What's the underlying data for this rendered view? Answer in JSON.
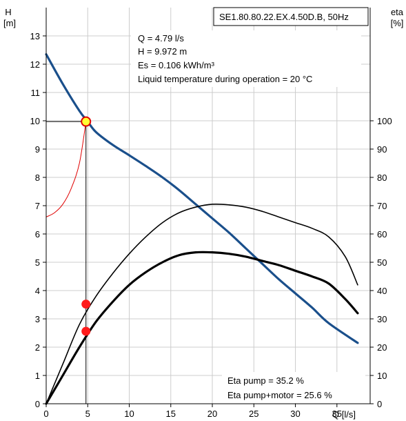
{
  "chart_data": {
    "type": "line",
    "title": "SE1.80.80.22.EX.4.50D.B, 50Hz",
    "xlabel": "Q [l/s]",
    "ylabel_left": [
      "H",
      "[m]"
    ],
    "ylabel_right": [
      "eta",
      "[%]"
    ],
    "xlim": [
      0,
      39
    ],
    "ylim_left": [
      0,
      14
    ],
    "ylim_right": [
      0,
      140
    ],
    "x_ticks": [
      0,
      5,
      10,
      15,
      20,
      25,
      30,
      35
    ],
    "y_left_ticks": [
      0,
      1,
      2,
      3,
      4,
      5,
      6,
      7,
      8,
      9,
      10,
      11,
      12,
      13
    ],
    "y_right_ticks": [
      0,
      10,
      20,
      30,
      40,
      50,
      60,
      70,
      80,
      90,
      100
    ],
    "grid": true,
    "colors": {
      "pump_curve": "#1a4f8b",
      "system_curve": "#e00000",
      "eta": "#000000",
      "duty_marker": "#ffff33",
      "eta_marker": "#ff1a1a"
    },
    "series": [
      {
        "axis": "left",
        "x": [
          0,
          2,
          4,
          5,
          6,
          8,
          10,
          12,
          14,
          16,
          18,
          20,
          22,
          24,
          26,
          28,
          30,
          32,
          34,
          37.5
        ],
        "values": [
          12.35,
          11.3,
          10.35,
          9.97,
          9.6,
          9.15,
          8.78,
          8.4,
          8.0,
          7.55,
          7.05,
          6.55,
          6.05,
          5.5,
          4.95,
          4.4,
          3.9,
          3.4,
          2.85,
          2.15
        ]
      },
      {
        "axis": "left",
        "x": [
          0,
          1,
          2,
          3,
          4,
          4.79
        ],
        "values": [
          6.6,
          6.75,
          7.05,
          7.6,
          8.5,
          9.97
        ]
      },
      {
        "axis": "right",
        "x": [
          0,
          2,
          4,
          6,
          8,
          10,
          12,
          14,
          16,
          18,
          20,
          22,
          24,
          26,
          28,
          30,
          32,
          34,
          36,
          37.5
        ],
        "values": [
          0,
          14,
          28,
          38,
          46,
          53,
          59,
          64,
          67.5,
          69.5,
          70.5,
          70.3,
          69.5,
          68,
          66,
          64,
          62,
          59,
          52,
          42
        ]
      },
      {
        "axis": "right",
        "x": [
          0,
          2,
          4,
          6,
          8,
          10,
          12,
          14,
          16,
          18,
          20,
          22,
          24,
          26,
          28,
          30,
          32,
          34,
          36,
          37.5
        ],
        "values": [
          0,
          10,
          20,
          29,
          36,
          42,
          46.5,
          50,
          52.5,
          53.5,
          53.5,
          53,
          52,
          50.5,
          49,
          47,
          45,
          42.5,
          37,
          32
        ]
      }
    ],
    "duty_point": {
      "x": 4.79,
      "y": 9.972
    },
    "eta_points": [
      {
        "x": 4.79,
        "value": 35.2
      },
      {
        "x": 4.79,
        "value": 25.6
      }
    ],
    "info_lines": [
      "Q = 4.79 l/s",
      "H = 9.972 m",
      "Es = 0.106 kWh/m³",
      "Liquid temperature during operation = 20 °C"
    ],
    "eta_lines": [
      "Eta pump = 35.2 %",
      "Eta pump+motor = 25.6 %"
    ]
  }
}
